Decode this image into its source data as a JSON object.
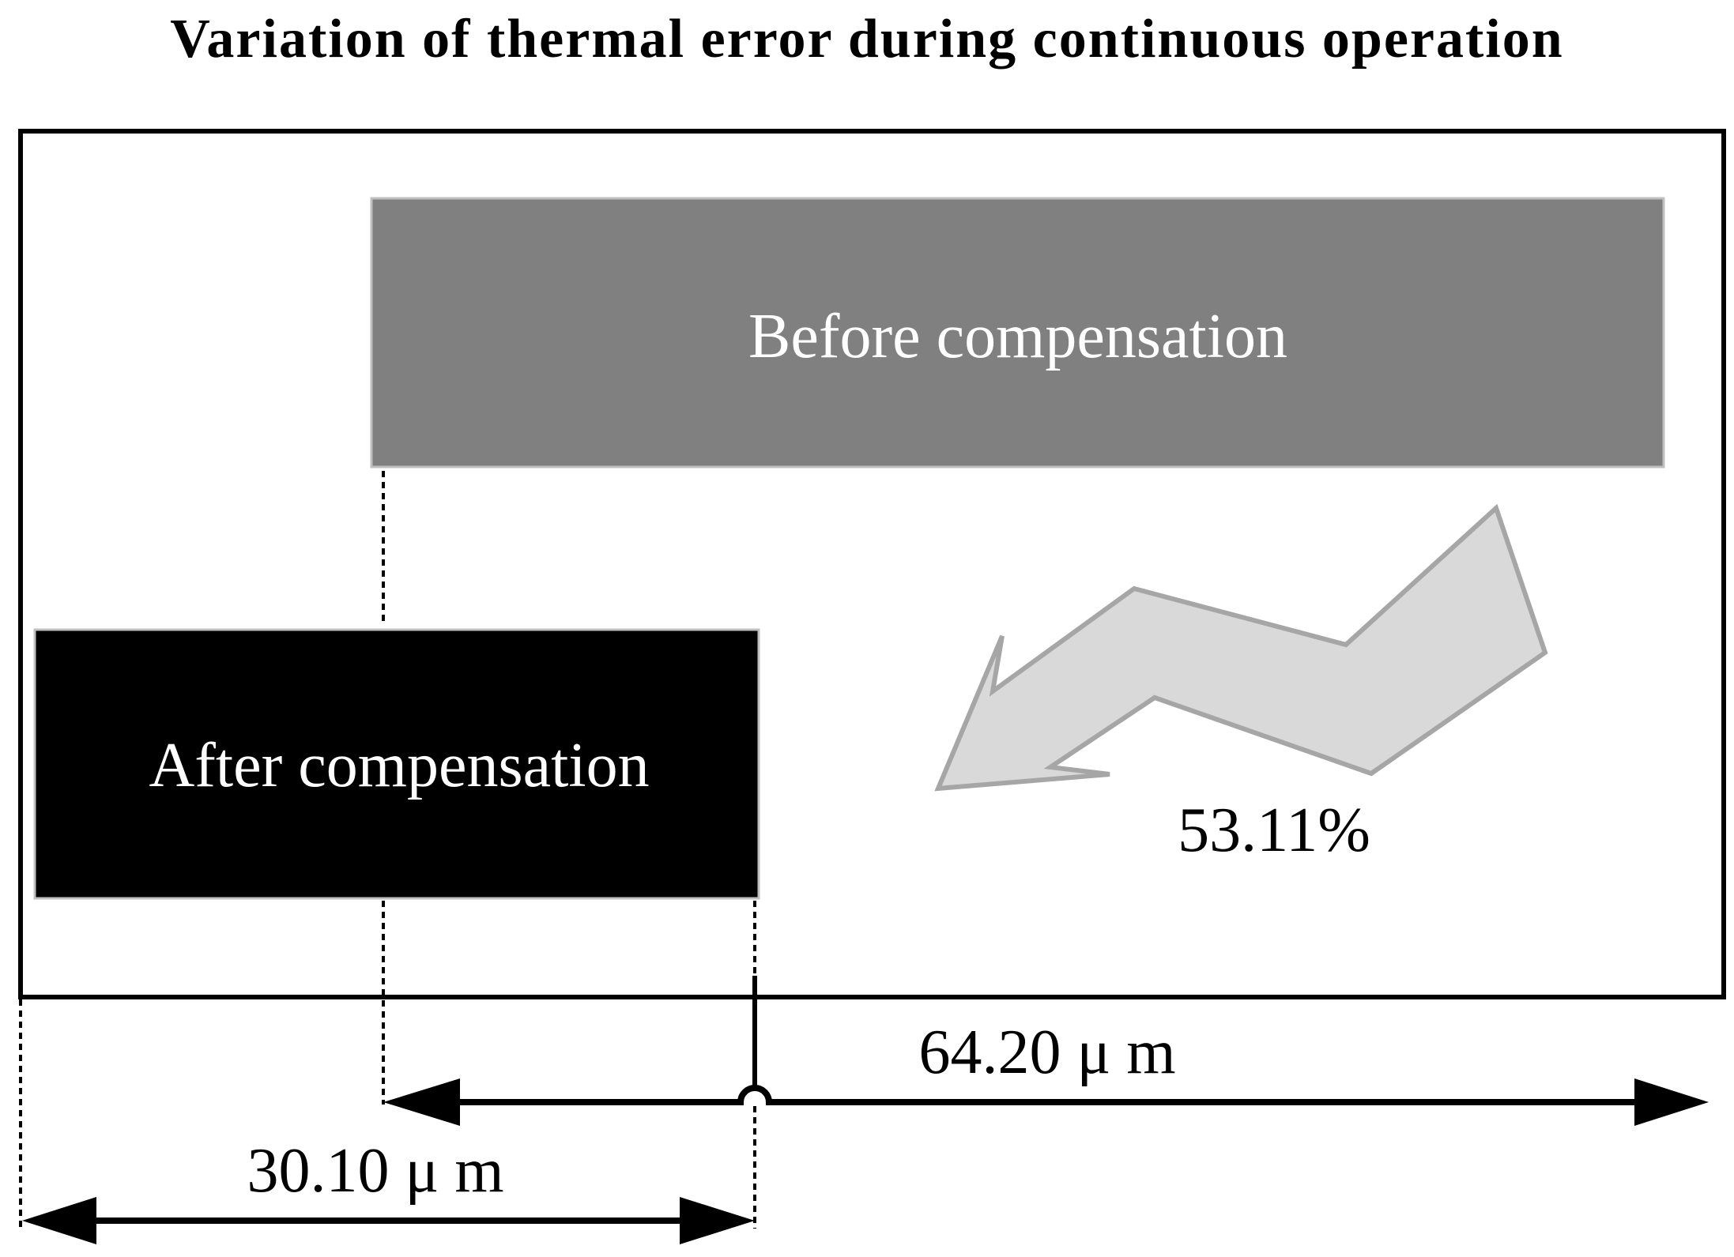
{
  "title": "Variation of thermal error during continuous operation",
  "before_box": {
    "label": "Before compensation",
    "color": "#808080"
  },
  "after_box": {
    "label": "After compensation",
    "color": "#000000"
  },
  "reduction": {
    "label": "53.11%",
    "arrow_fill": "#d9d9d9",
    "arrow_stroke": "#a6a6a6"
  },
  "dimensions": {
    "before_error": "64.20 μ m",
    "after_error": "30.10 μ m"
  }
}
